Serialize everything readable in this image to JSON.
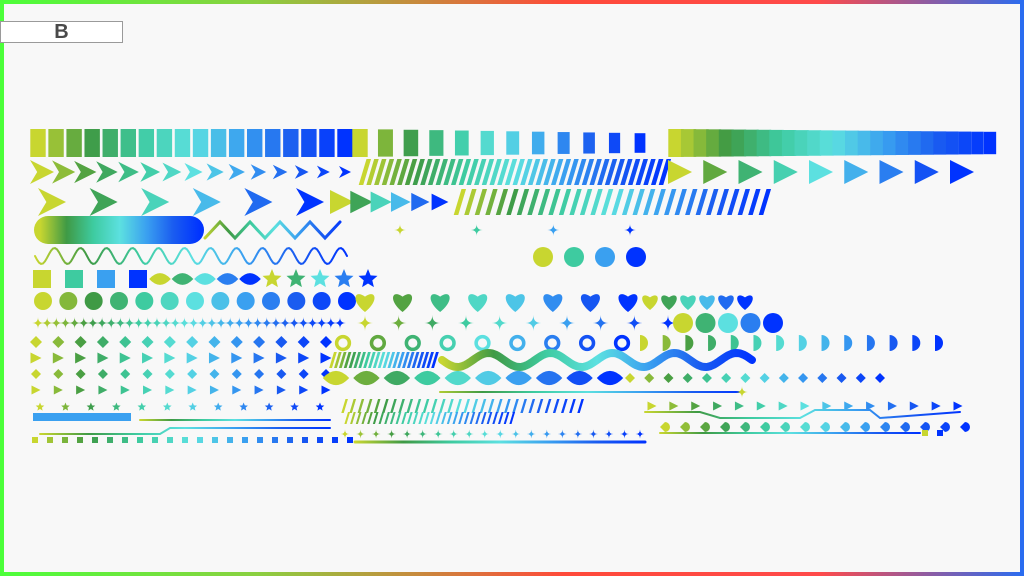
{
  "artboard": {
    "label": "B"
  },
  "frame_colors": {
    "left": "#4cff3a",
    "top_mid": "#ff4a3a",
    "right": "#2a6cf0"
  },
  "palette": [
    "#c8d630",
    "#3f9a45",
    "#3ecba0",
    "#5ce0e0",
    "#3aa0f0",
    "#1a5cf0",
    "#0033ff"
  ],
  "background": "#f8f8f8"
}
